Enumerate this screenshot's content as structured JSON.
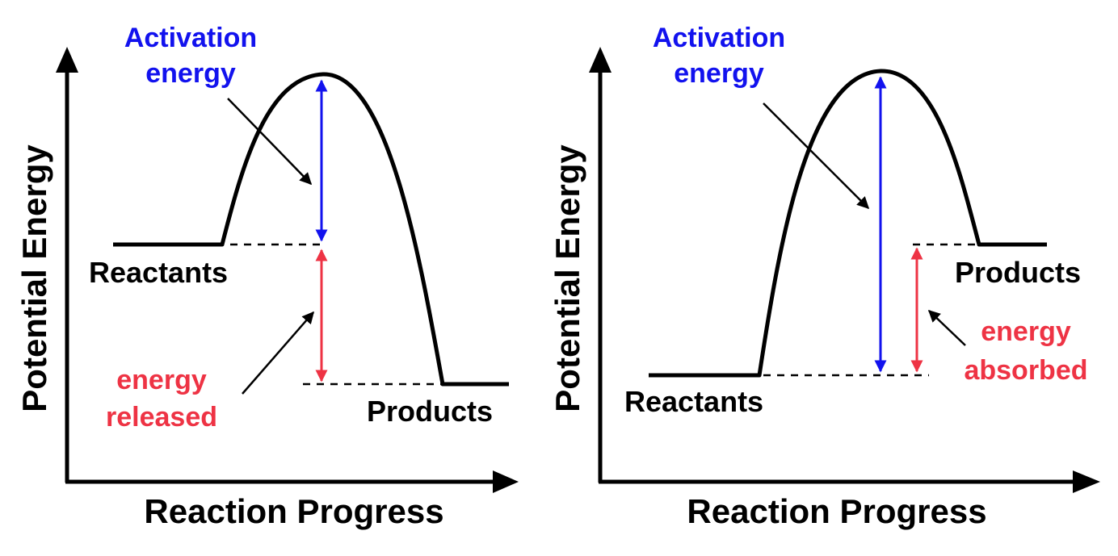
{
  "colors": {
    "axis": "#000000",
    "curve": "#000000",
    "activation": "#1212ee",
    "energy_change": "#ee3344"
  },
  "left_diagram": {
    "activation_label": [
      "Activation",
      "energy"
    ],
    "reactants_label": "Reactants",
    "products_label": "Products",
    "energy_label": [
      "energy",
      "released"
    ],
    "y_axis_label": "Potential Energy",
    "x_axis_label": "Reaction Progress"
  },
  "right_diagram": {
    "activation_label": [
      "Activation",
      "energy"
    ],
    "reactants_label": "Reactants",
    "products_label": "Products",
    "energy_label": [
      "energy",
      "absorbed"
    ],
    "y_axis_label": "Potential Energy",
    "x_axis_label": "Reaction Progress"
  }
}
